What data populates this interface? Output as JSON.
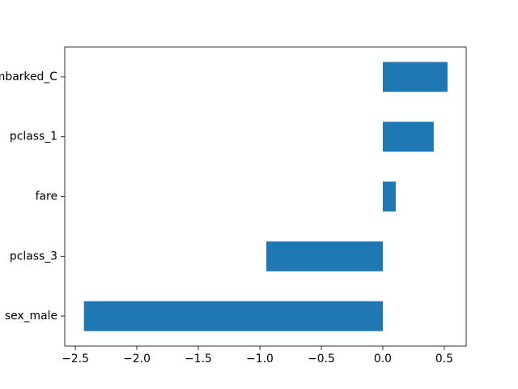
{
  "chart_data": {
    "type": "barh",
    "categories": [
      "sex_male",
      "pclass_3",
      "fare",
      "pclass_1",
      "embarked_C"
    ],
    "values": [
      -2.43,
      -0.947,
      0.105,
      0.414,
      0.526
    ],
    "color": "#1f77b4",
    "xlim": [
      -2.586,
      0.678
    ],
    "xticks": [
      {
        "value": -2.5,
        "label": "−2.5"
      },
      {
        "value": -2.0,
        "label": "−2.0"
      },
      {
        "value": -1.5,
        "label": "−1.5"
      },
      {
        "value": -1.0,
        "label": "−1.0"
      },
      {
        "value": -0.5,
        "label": "−0.5"
      },
      {
        "value": 0.0,
        "label": "0.0"
      },
      {
        "value": 0.5,
        "label": "0.5"
      }
    ],
    "grid": false
  }
}
